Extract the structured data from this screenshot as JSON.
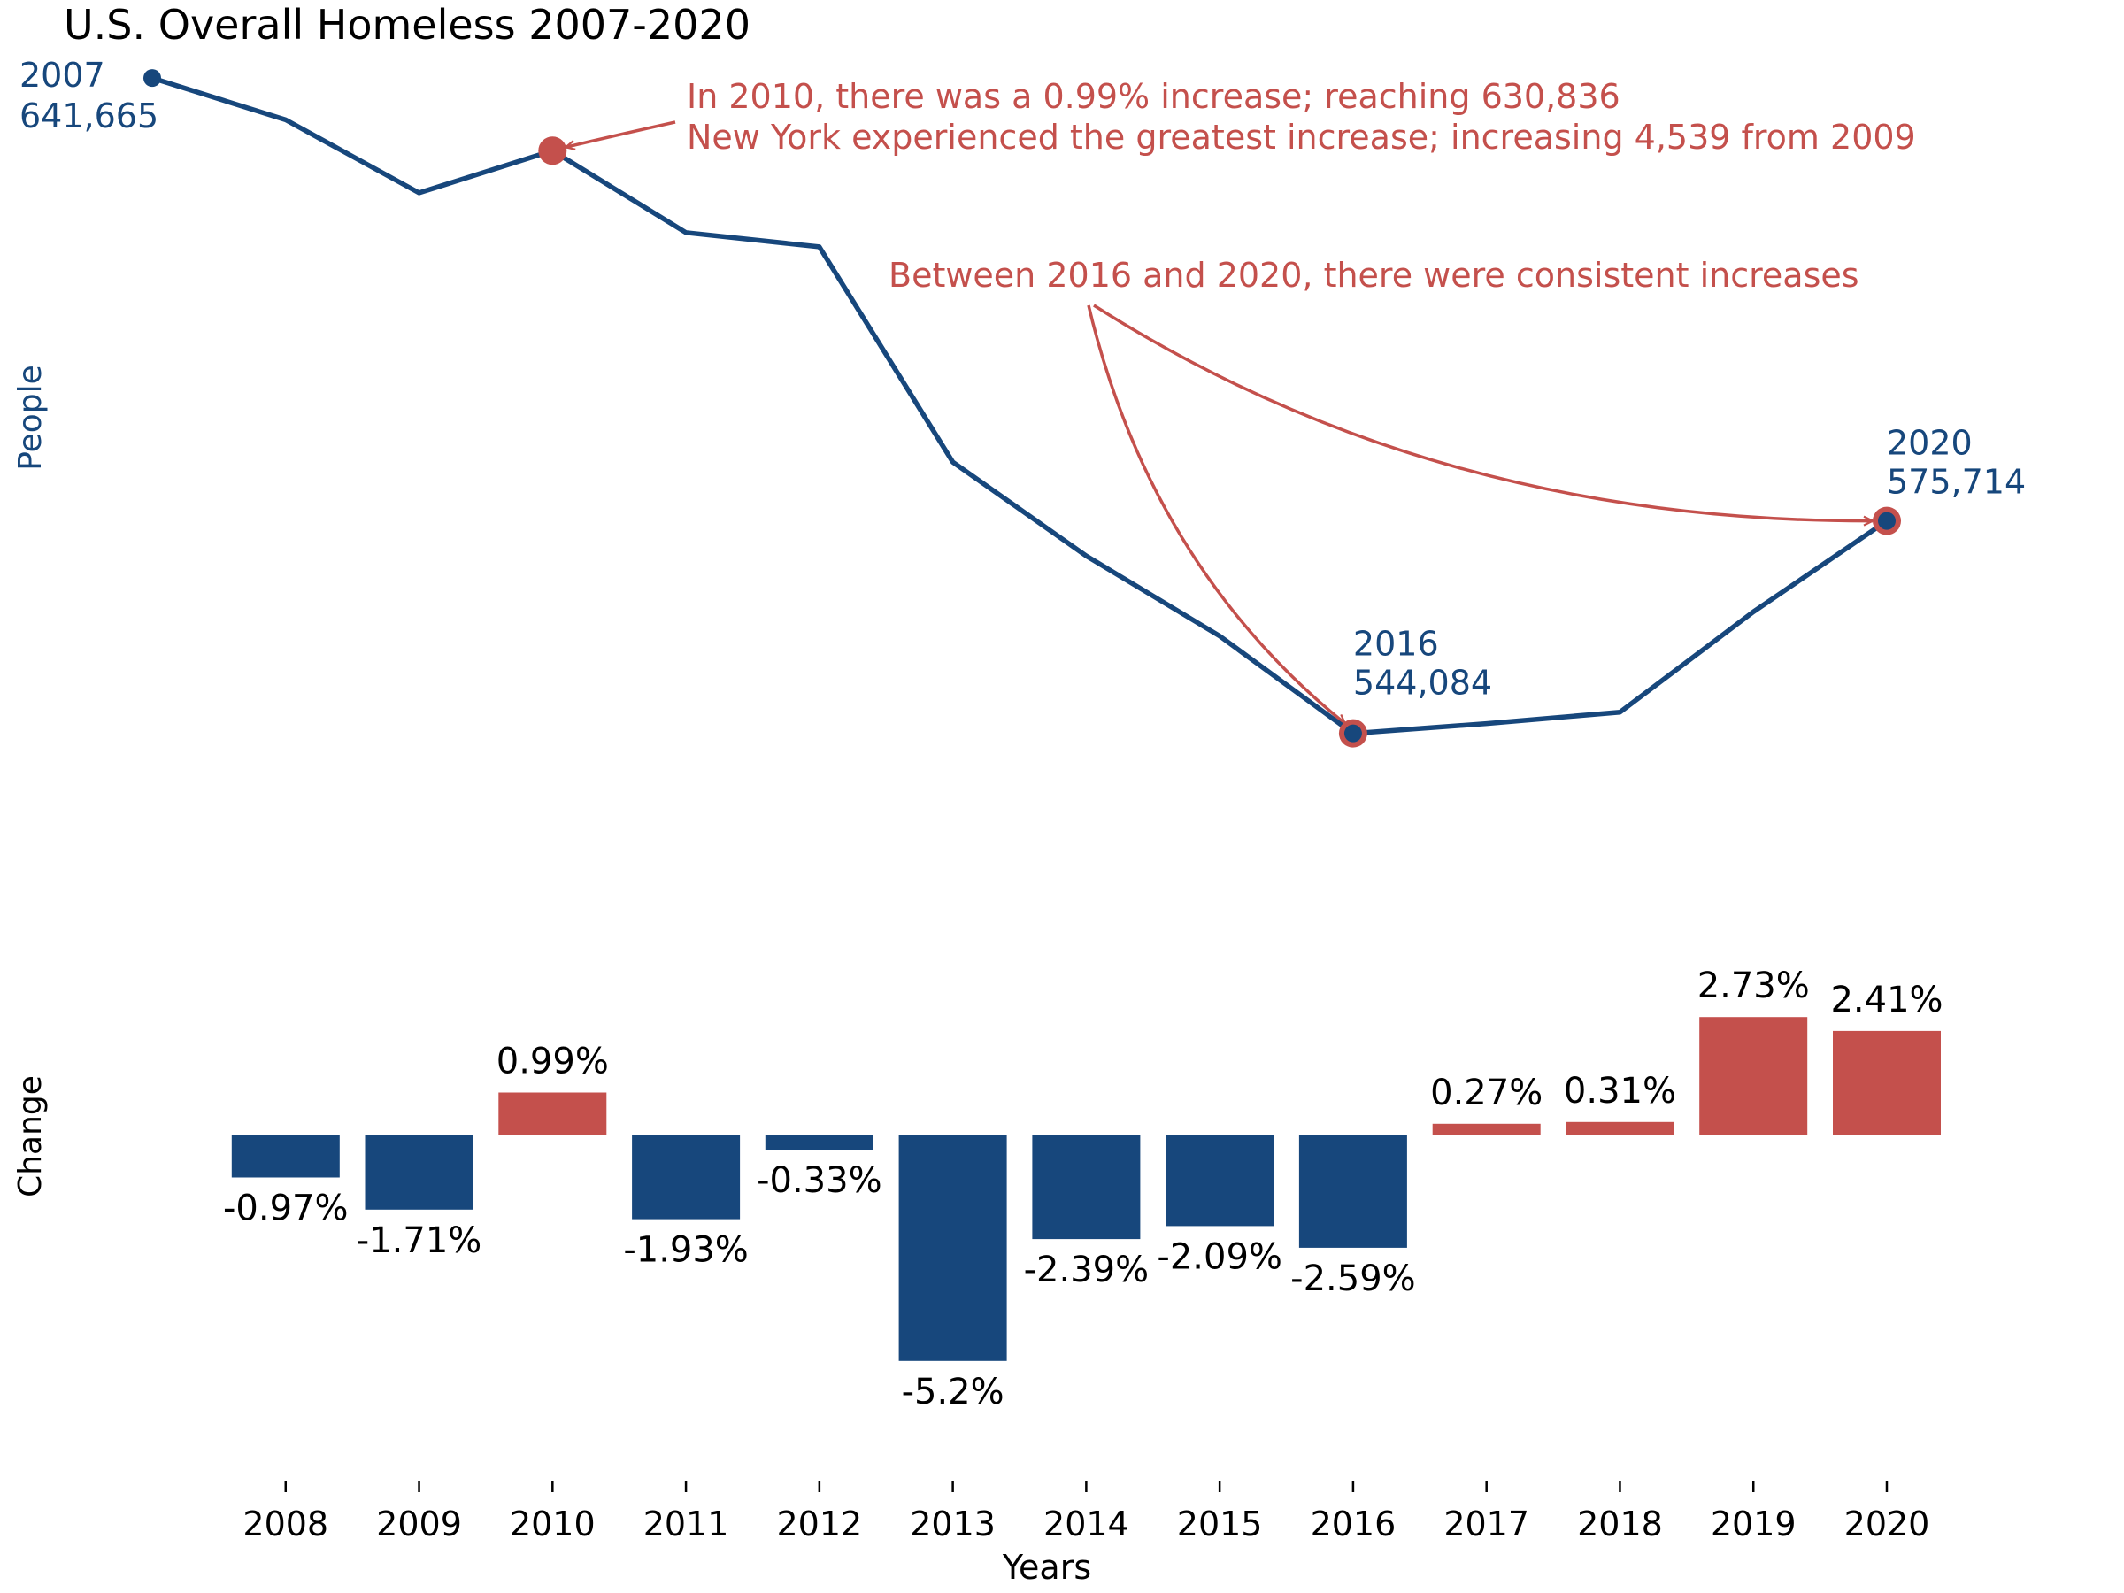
{
  "colors": {
    "primary": "#17477c",
    "accent": "#c4504c",
    "text": "#000000",
    "background": "#ffffff"
  },
  "chart_data": [
    {
      "type": "line",
      "title": "U.S. Overall Homeless 2007-2020",
      "ylabel": "People",
      "x": [
        2007,
        2008,
        2009,
        2010,
        2011,
        2012,
        2013,
        2014,
        2015,
        2016,
        2017,
        2018,
        2019,
        2020
      ],
      "series": [
        {
          "values": [
            641665,
            635432,
            624568,
            630836,
            618648,
            616523,
            584483,
            570505,
            558575,
            544084,
            545544,
            547237,
            562179,
            575714
          ]
        }
      ],
      "ylim": [
        536000,
        643000
      ],
      "grid": false,
      "point_labels": [
        {
          "x": 2007,
          "year": "2007",
          "value": "641,665"
        },
        {
          "x": 2016,
          "year": "2016",
          "value": "544,084"
        },
        {
          "x": 2020,
          "year": "2020",
          "value": "575,714"
        }
      ],
      "highlighted": [
        2010,
        2016,
        2020
      ],
      "annotations": [
        {
          "lines": [
            "In 2010, there was a 0.99% increase; reaching 630,836",
            "New York experienced the greatest increase; increasing 4,539 from 2009"
          ],
          "targets": [
            2010
          ]
        },
        {
          "lines": [
            "Between 2016 and 2020, there were consistent increases"
          ],
          "targets": [
            2016,
            2020
          ]
        }
      ]
    },
    {
      "type": "bar",
      "ylabel": "Change",
      "xlabel": "Years",
      "categories": [
        "2008",
        "2009",
        "2010",
        "2011",
        "2012",
        "2013",
        "2014",
        "2015",
        "2016",
        "2017",
        "2018",
        "2019",
        "2020"
      ],
      "values": [
        -0.97,
        -1.71,
        0.99,
        -1.93,
        -0.33,
        -5.2,
        -2.39,
        -2.09,
        -2.59,
        0.27,
        0.31,
        2.73,
        2.41
      ],
      "labels": [
        "-0.97%",
        "-1.71%",
        "0.99%",
        "-1.93%",
        "-0.33%",
        "-5.2%",
        "-2.39%",
        "-2.09%",
        "-2.59%",
        "0.27%",
        "0.31%",
        "2.73%",
        "2.41%"
      ],
      "ylim": [
        -7.4,
        4.0
      ],
      "grid": false,
      "positive_color": "#c4504c",
      "negative_color": "#17477c"
    }
  ]
}
